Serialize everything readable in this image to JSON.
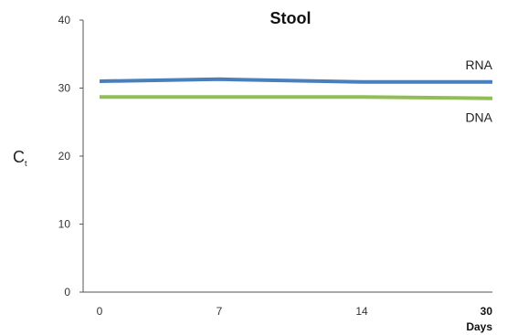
{
  "chart_data": {
    "type": "line",
    "title": "Stool",
    "xlabel": "Days",
    "ylabel": "C",
    "ylabel_subscript": "t",
    "x": [
      0,
      7,
      14,
      30
    ],
    "x_tick_labels": [
      "0",
      "7",
      "14",
      "30"
    ],
    "y_ticks": [
      0,
      10,
      20,
      30,
      40
    ],
    "ylim": [
      0,
      40
    ],
    "grid": false,
    "series": [
      {
        "name": "RNA",
        "color": "#4a7fbd",
        "values": [
          31.0,
          31.3,
          30.9,
          30.9
        ]
      },
      {
        "name": "DNA",
        "color": "#8fbd56",
        "values": [
          28.7,
          28.7,
          28.7,
          28.5
        ]
      }
    ]
  }
}
